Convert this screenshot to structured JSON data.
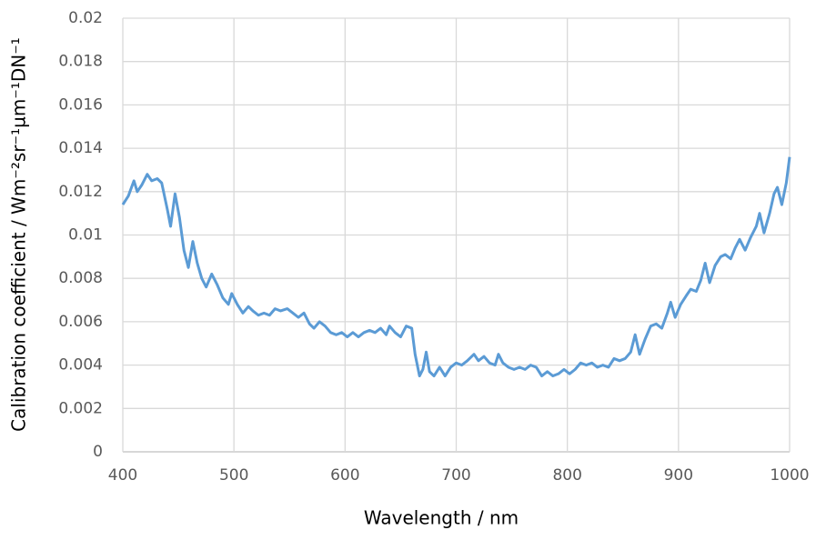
{
  "chart_data": {
    "type": "line",
    "xlabel": "Wavelength / nm",
    "ylabel": "Calibration coefficient / Wm⁻²sr⁻¹µm⁻¹DN⁻¹",
    "xlim": [
      400,
      1000
    ],
    "xticks": [
      400,
      500,
      600,
      700,
      800,
      900,
      1000
    ],
    "ylim": [
      0,
      0.02
    ],
    "yticks": [
      0,
      0.002,
      0.004,
      0.006,
      0.008,
      0.01,
      0.012,
      0.014,
      0.016,
      0.018,
      0.02
    ],
    "grid": true,
    "series": [
      {
        "color": "#5b9bd5",
        "x": [
          400,
          405,
          410,
          413,
          417,
          422,
          426,
          431,
          435,
          440,
          443,
          447,
          451,
          455,
          459,
          463,
          467,
          471,
          475,
          480,
          485,
          490,
          495,
          498,
          503,
          508,
          513,
          517,
          522,
          527,
          532,
          537,
          542,
          548,
          553,
          558,
          563,
          568,
          572,
          577,
          582,
          587,
          592,
          597,
          602,
          607,
          612,
          617,
          622,
          627,
          632,
          637,
          640,
          645,
          650,
          655,
          660,
          663,
          667,
          670,
          673,
          676,
          680,
          685,
          690,
          695,
          700,
          705,
          710,
          716,
          720,
          725,
          730,
          735,
          738,
          742,
          747,
          752,
          757,
          762,
          767,
          772,
          777,
          782,
          787,
          792,
          797,
          802,
          807,
          812,
          817,
          822,
          827,
          832,
          837,
          842,
          847,
          852,
          857,
          861,
          865,
          870,
          875,
          880,
          885,
          890,
          893,
          897,
          902,
          907,
          911,
          916,
          920,
          924,
          928,
          933,
          938,
          942,
          947,
          951,
          955,
          960,
          965,
          970,
          973,
          977,
          982,
          986,
          989,
          993,
          997,
          1000
        ],
        "values": [
          0.0114,
          0.0118,
          0.0125,
          0.012,
          0.0123,
          0.0128,
          0.0125,
          0.0126,
          0.0124,
          0.0112,
          0.0104,
          0.0119,
          0.0108,
          0.0093,
          0.0085,
          0.0097,
          0.0087,
          0.008,
          0.0076,
          0.0082,
          0.0077,
          0.0071,
          0.0068,
          0.0073,
          0.0068,
          0.0064,
          0.0067,
          0.0065,
          0.0063,
          0.0064,
          0.0063,
          0.0066,
          0.0065,
          0.0066,
          0.0064,
          0.0062,
          0.0064,
          0.0059,
          0.0057,
          0.006,
          0.0058,
          0.0055,
          0.0054,
          0.0055,
          0.0053,
          0.0055,
          0.0053,
          0.0055,
          0.0056,
          0.0055,
          0.0057,
          0.0054,
          0.0058,
          0.0055,
          0.0053,
          0.0058,
          0.0057,
          0.0045,
          0.0035,
          0.0038,
          0.0046,
          0.0037,
          0.0035,
          0.0039,
          0.0035,
          0.0039,
          0.0041,
          0.004,
          0.0042,
          0.0045,
          0.0042,
          0.0044,
          0.0041,
          0.004,
          0.0045,
          0.0041,
          0.0039,
          0.0038,
          0.0039,
          0.0038,
          0.004,
          0.0039,
          0.0035,
          0.0037,
          0.0035,
          0.0036,
          0.0038,
          0.0036,
          0.0038,
          0.0041,
          0.004,
          0.0041,
          0.0039,
          0.004,
          0.0039,
          0.0043,
          0.0042,
          0.0043,
          0.0046,
          0.0054,
          0.0045,
          0.0052,
          0.0058,
          0.0059,
          0.0057,
          0.0064,
          0.0069,
          0.0062,
          0.0068,
          0.0072,
          0.0075,
          0.0074,
          0.0079,
          0.0087,
          0.0078,
          0.0086,
          0.009,
          0.0091,
          0.0089,
          0.0094,
          0.0098,
          0.0093,
          0.0099,
          0.0104,
          0.011,
          0.0101,
          0.011,
          0.0119,
          0.0122,
          0.0114,
          0.0124,
          0.0136
        ]
      }
    ]
  }
}
